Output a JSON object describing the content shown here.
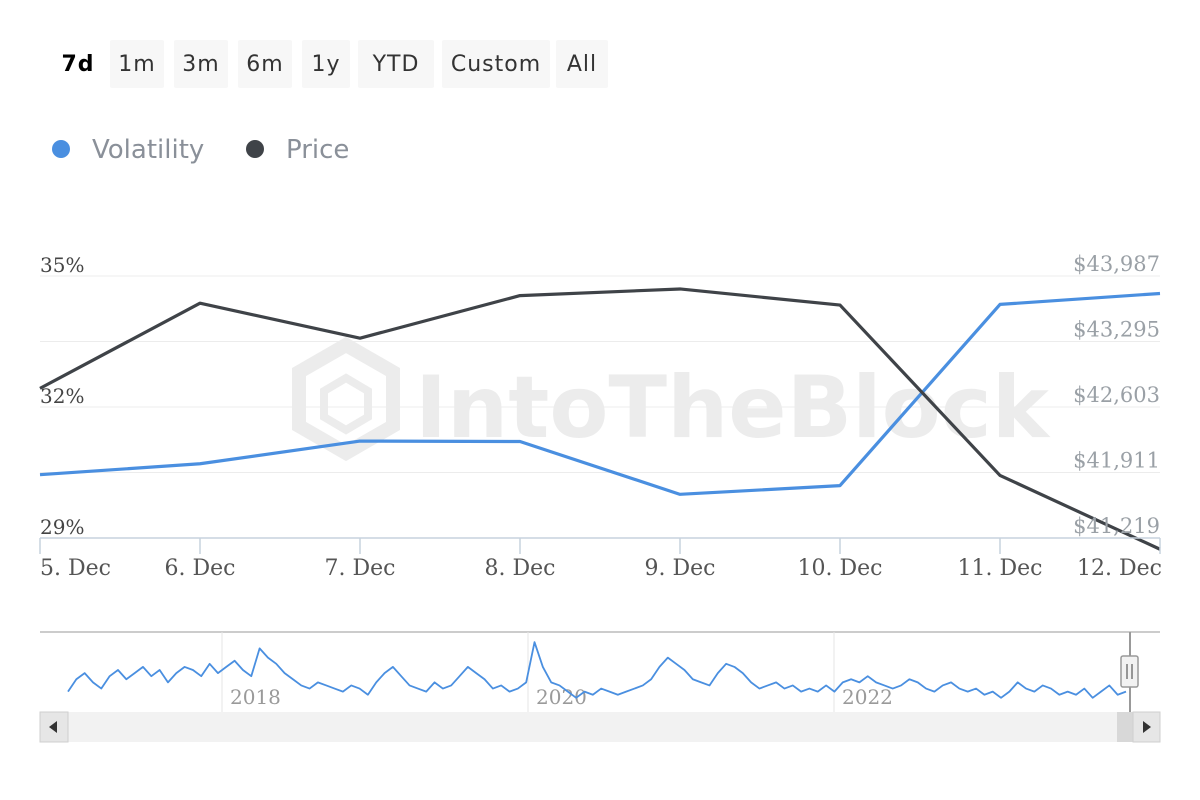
{
  "range_selector": {
    "buttons": [
      "7d",
      "1m",
      "3m",
      "6m",
      "1y",
      "YTD",
      "Custom",
      "All"
    ],
    "active": "7d"
  },
  "legend": [
    {
      "name": "Volatility",
      "color": "#4a8fe0"
    },
    {
      "name": "Price",
      "color": "#3f4348"
    }
  ],
  "watermark": "IntoTheBlock",
  "chart_data": {
    "type": "line",
    "categories": [
      "5. Dec",
      "6. Dec",
      "7. Dec",
      "8. Dec",
      "9. Dec",
      "10. Dec",
      "11. Dec",
      "12. Dec"
    ],
    "series": [
      {
        "name": "Volatility",
        "axis": "left",
        "color": "#4a8fe0",
        "values": [
          30.45,
          30.7,
          31.22,
          31.21,
          30.0,
          30.2,
          34.35,
          34.6
        ]
      },
      {
        "name": "Price",
        "axis": "right",
        "color": "#3f4348",
        "values": [
          42800,
          43700,
          43330,
          43780,
          43850,
          43680,
          41880,
          41100
        ]
      }
    ],
    "y_left": {
      "ticks": [
        "35%",
        "32%",
        "29%"
      ],
      "tick_values": [
        35,
        32,
        29
      ],
      "ylim": [
        29,
        35
      ]
    },
    "y_right": {
      "ticks": [
        "$43,987",
        "$43,295",
        "$42,603",
        "$41,911",
        "$41,219"
      ],
      "tick_values": [
        43987,
        43295,
        42603,
        41911,
        41219
      ],
      "ylim": [
        41219,
        43987
      ]
    },
    "grid": true,
    "navigator": {
      "year_labels": [
        "2018",
        "2020",
        "2022"
      ],
      "values": [
        30,
        34,
        36,
        33,
        31,
        35,
        37,
        34,
        36,
        38,
        35,
        37,
        33,
        36,
        38,
        37,
        35,
        39,
        36,
        38,
        40,
        37,
        35,
        44,
        41,
        39,
        36,
        34,
        32,
        31,
        33,
        32,
        31,
        30,
        32,
        31,
        29,
        33,
        36,
        38,
        35,
        32,
        31,
        30,
        33,
        31,
        32,
        35,
        38,
        36,
        34,
        31,
        32,
        30,
        31,
        33,
        46,
        38,
        33,
        32,
        30,
        28,
        30,
        29,
        31,
        30,
        29,
        30,
        31,
        32,
        34,
        38,
        41,
        39,
        37,
        34,
        33,
        32,
        36,
        39,
        38,
        36,
        33,
        31,
        32,
        33,
        31,
        32,
        30,
        31,
        30,
        32,
        30,
        33,
        34,
        33,
        35,
        33,
        32,
        31,
        32,
        34,
        33,
        31,
        30,
        32,
        33,
        31,
        30,
        31,
        29,
        30,
        28,
        30,
        33,
        31,
        30,
        32,
        31,
        29,
        30,
        29,
        31,
        28,
        30,
        32,
        29,
        30
      ]
    }
  }
}
